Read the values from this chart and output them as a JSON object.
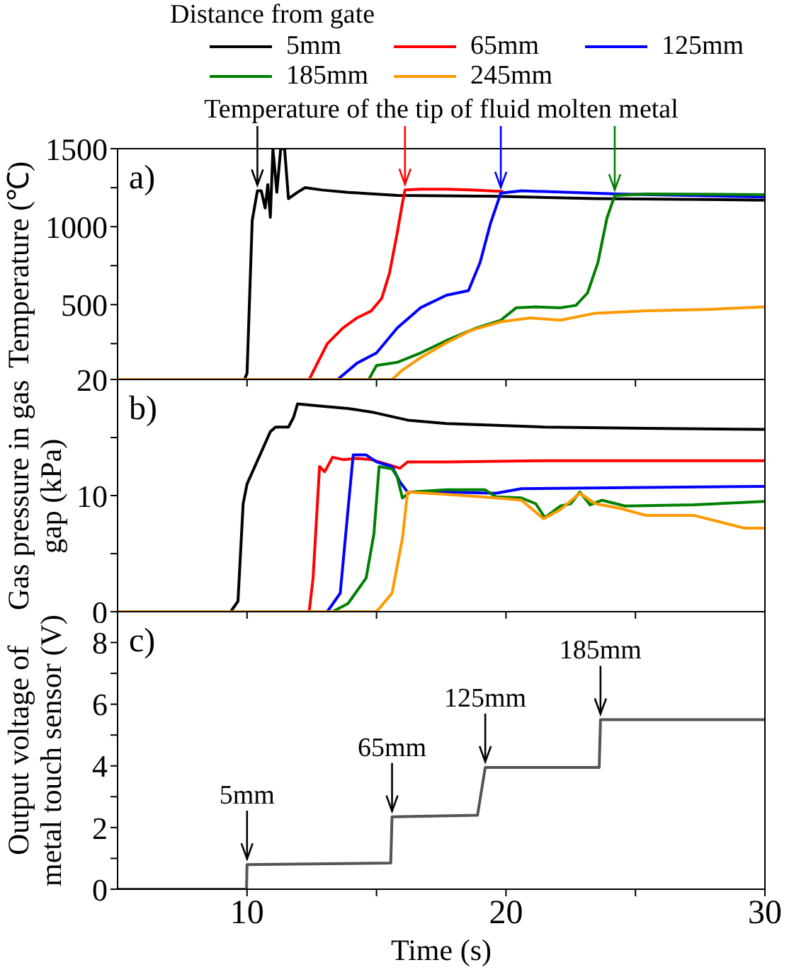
{
  "chart_data": [
    {
      "type": "line",
      "ylabel": "Temperature (℃)",
      "legend_title": "Distance from gate",
      "legend": "top",
      "tick_labels": "y",
      "annotations": [
        "a)",
        {
          "text": "Temperature of the tip of fluid molten metal",
          "x": 10.4,
          "y": 1230
        }
      ],
      "xlim": [
        5,
        30
      ],
      "xticks": [
        {
          "value": 10,
          "label": null
        },
        {
          "value": 15,
          "label": null
        },
        {
          "value": 20,
          "label": null
        },
        {
          "value": 25,
          "label": null
        },
        {
          "value": 30,
          "label": null
        }
      ],
      "ylim": [
        20,
        1500
      ],
      "yticks": [
        20,
        {
          "value": 250,
          "label": null
        },
        500,
        {
          "value": 750,
          "label": null
        },
        1000,
        {
          "value": 1250,
          "label": null
        },
        1500
      ],
      "series": [
        {
          "name": "5mm",
          "color": "#000000",
          "x": [
            5,
            9.9,
            10.0,
            10.2,
            10.4,
            10.55,
            10.7,
            10.8,
            10.9,
            11.0,
            11.15,
            11.3,
            11.45,
            11.6,
            11.95,
            12.24,
            12.9,
            13.9,
            15.8,
            19.6,
            23.4,
            30
          ],
          "values": [
            20,
            20,
            60,
            1040,
            1230,
            1230,
            1120,
            1270,
            1060,
            1500,
            1220,
            1500,
            1500,
            1180,
            1220,
            1250,
            1235,
            1220,
            1200,
            1195,
            1180,
            1170
          ]
        },
        {
          "name": "65mm",
          "color": "#ff0000",
          "x": [
            5,
            12.4,
            13.1,
            13.7,
            14.25,
            14.8,
            15.2,
            15.5,
            15.8,
            16.0,
            16.1,
            16.7,
            17.7,
            18.65,
            19.9
          ],
          "values": [
            20,
            20,
            250,
            350,
            415,
            460,
            540,
            700,
            960,
            1150,
            1235,
            1240,
            1240,
            1235,
            1225
          ]
        },
        {
          "name": "125mm",
          "color": "#0000ff",
          "x": [
            5,
            13.5,
            14.25,
            15.0,
            15.8,
            16.7,
            17.7,
            18.55,
            19.0,
            19.4,
            19.8,
            20.6,
            21.5,
            24.3,
            30
          ],
          "values": [
            20,
            20,
            125,
            190,
            350,
            480,
            560,
            590,
            770,
            1020,
            1215,
            1230,
            1225,
            1210,
            1190
          ]
        },
        {
          "name": "185mm",
          "color": "#008000",
          "x": [
            5,
            14.7,
            15.0,
            15.8,
            16.7,
            17.7,
            18.85,
            19.8,
            20.4,
            21.15,
            22.1,
            22.7,
            23.15,
            23.55,
            23.9,
            24.2,
            25.4,
            30
          ],
          "values": [
            20,
            20,
            110,
            130,
            190,
            270,
            350,
            400,
            480,
            485,
            480,
            495,
            575,
            770,
            1055,
            1200,
            1210,
            1205
          ]
        },
        {
          "name": "245mm",
          "color": "#ff9900",
          "x": [
            5,
            15.6,
            16.0,
            16.7,
            17.7,
            18.65,
            19.8,
            20.95,
            22.1,
            23.45,
            25.4,
            27.85,
            30
          ],
          "values": [
            20,
            20,
            80,
            160,
            255,
            335,
            390,
            415,
            400,
            445,
            460,
            470,
            485
          ]
        }
      ]
    },
    {
      "type": "line",
      "ylabel": "Gas pressure in gas gap (kPa)",
      "tick_labels": "y",
      "annotations": [
        "b)"
      ],
      "xlim": [
        5,
        30
      ],
      "xticks": [
        {
          "value": 10,
          "label": null
        },
        {
          "value": 15,
          "label": null
        },
        {
          "value": 20,
          "label": null
        },
        {
          "value": 25,
          "label": null
        },
        {
          "value": 30,
          "label": null
        }
      ],
      "ylim": [
        0,
        20
      ],
      "yticks": [
        0,
        {
          "value": 5,
          "label": null
        },
        10,
        {
          "value": 15,
          "label": null
        },
        {
          "value": 20,
          "label": null
        }
      ],
      "series": [
        {
          "color": "#000000",
          "x": [
            5,
            9.37,
            9.65,
            9.85,
            10.0,
            10.3,
            10.6,
            10.9,
            11.1,
            11.6,
            11.8,
            11.95,
            12.9,
            13.9,
            14.8,
            16.2,
            17.7,
            21.5,
            25.4,
            30
          ],
          "values": [
            0,
            0,
            0.9,
            9.3,
            11,
            12.5,
            14,
            15.5,
            15.9,
            15.9,
            16.75,
            17.9,
            17.7,
            17.5,
            17.2,
            16.5,
            16.2,
            15.9,
            15.8,
            15.7
          ]
        },
        {
          "color": "#ff0000",
          "x": [
            5,
            12.4,
            12.55,
            12.8,
            13.0,
            13.3,
            13.7,
            14.25,
            14.8,
            15.4,
            15.9,
            16.2,
            17.7,
            21.5,
            30
          ],
          "values": [
            0,
            0,
            2.9,
            12.5,
            12.05,
            13.3,
            13.1,
            13.2,
            13.1,
            12.7,
            12.35,
            12.9,
            12.9,
            13.0,
            13.0
          ]
        },
        {
          "color": "#0000ff",
          "x": [
            5,
            13.1,
            13.6,
            13.9,
            14.1,
            14.6,
            15.0,
            15.6,
            15.9,
            16.2,
            17.7,
            19.6,
            20.6,
            25.4,
            30
          ],
          "values": [
            0,
            0,
            1.6,
            8.8,
            13.5,
            13.5,
            12.9,
            12.5,
            11.2,
            10.3,
            10.3,
            10.2,
            10.6,
            10.7,
            10.8
          ]
        },
        {
          "color": "#008000",
          "x": [
            5,
            13.3,
            13.9,
            14.6,
            14.9,
            15.1,
            15.6,
            15.8,
            16.0,
            16.3,
            17.7,
            19.2,
            19.6,
            20.6,
            21.15,
            21.5,
            22.1,
            22.5,
            22.85,
            23.25,
            23.7,
            24.6,
            27.25,
            30
          ],
          "values": [
            0,
            0,
            0.7,
            2.9,
            6.7,
            12.5,
            12.3,
            11.6,
            9.8,
            10.3,
            10.5,
            10.5,
            9.9,
            9.8,
            9.3,
            8.1,
            9.1,
            9.3,
            10.3,
            9.2,
            9.6,
            9.1,
            9.2,
            9.5
          ]
        },
        {
          "color": "#ff9900",
          "x": [
            5,
            15.0,
            15.6,
            16.0,
            16.2,
            17.7,
            19.6,
            20.6,
            21.45,
            22.1,
            22.85,
            23.45,
            24.4,
            25.4,
            27.25,
            29.2,
            30
          ],
          "values": [
            0,
            0,
            1.6,
            6.3,
            10.3,
            10.1,
            9.8,
            9.6,
            8.0,
            8.8,
            10.2,
            9.3,
            8.9,
            8.3,
            8.3,
            7.2,
            7.2
          ]
        }
      ]
    },
    {
      "type": "line",
      "ylabel": "Output voltage of metal touch sensor (V)",
      "xlabel": "Time (s)",
      "annotations": [
        "c)",
        {
          "text": "5mm",
          "x": 10.0,
          "y": 0.8
        },
        {
          "text": "65mm",
          "x": 15.6,
          "y": 2.35
        },
        {
          "text": "125mm",
          "x": 19.2,
          "y": 3.95
        },
        {
          "text": "185mm",
          "x": 23.65,
          "y": 5.5
        }
      ],
      "xlim": [
        5,
        30
      ],
      "xticks": [
        10,
        {
          "value": 15,
          "label": null
        },
        20,
        {
          "value": 25,
          "label": null
        },
        30
      ],
      "ylim": [
        0,
        9
      ],
      "yticks": [
        0,
        {
          "value": 1,
          "label": null
        },
        2,
        {
          "value": 3,
          "label": null
        },
        4,
        {
          "value": 5,
          "label": null
        },
        6,
        {
          "value": 7,
          "label": null
        },
        8
      ],
      "series": [
        {
          "color": "#555555",
          "x": [
            5,
            9.98,
            10.0,
            15.55,
            15.6,
            18.9,
            19.2,
            23.6,
            23.65,
            30
          ],
          "values": [
            0,
            0,
            0.8,
            0.85,
            2.35,
            2.4,
            3.95,
            3.95,
            5.5,
            5.5
          ]
        }
      ]
    }
  ]
}
